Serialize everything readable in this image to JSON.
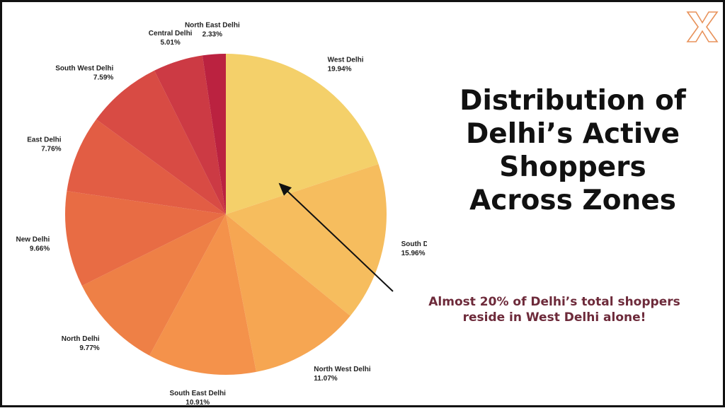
{
  "title_lines": [
    "Distribution of",
    "Delhi’s Active",
    "Shoppers",
    "Across Zones"
  ],
  "annotation_lines": [
    "Almost 20% of Delhi’s total shoppers",
    "reside in West Delhi alone!"
  ],
  "logo_icon": "x-logo-icon",
  "colors": {
    "annotation": "#6d2a3a",
    "logo": "#e8925a",
    "arrow": "#111111"
  },
  "chart_data": {
    "type": "pie",
    "title": "",
    "slices": [
      {
        "name": "West Delhi",
        "value": 19.94,
        "label": "19.94%",
        "color": "#f4d06a"
      },
      {
        "name": "South Delhi",
        "value": 15.96,
        "label": "15.96%",
        "color": "#f6bd5e"
      },
      {
        "name": "North West Delhi",
        "value": 11.07,
        "label": "11.07%",
        "color": "#f6a652"
      },
      {
        "name": "South East Delhi",
        "value": 10.91,
        "label": "10.91%",
        "color": "#f4924b"
      },
      {
        "name": "North Delhi",
        "value": 9.77,
        "label": "9.77%",
        "color": "#ee8046"
      },
      {
        "name": "New Delhi",
        "value": 9.66,
        "label": "9.66%",
        "color": "#e86c44"
      },
      {
        "name": "East Delhi",
        "value": 7.76,
        "label": "7.76%",
        "color": "#e25d44"
      },
      {
        "name": "South West Delhi",
        "value": 7.59,
        "label": "7.59%",
        "color": "#d84b44"
      },
      {
        "name": "Central Delhi",
        "value": 5.01,
        "label": "5.01%",
        "color": "#cc3a44"
      },
      {
        "name": "North East Delhi",
        "value": 2.33,
        "label": "2.33%",
        "color": "#bb2240"
      }
    ],
    "start_angle": "12 o'clock",
    "direction": "clockwise",
    "legend": "none"
  }
}
